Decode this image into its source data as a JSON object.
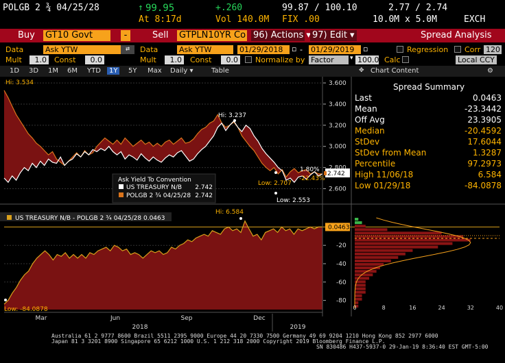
{
  "quote": {
    "ticker": "POLGB 2 ¾ 04/25/28",
    "arrow": "↑",
    "last": "99.95",
    "change": "+.260",
    "at_time": "At 8:17d",
    "volume": "Vol 140.0M",
    "bid_ask": "99.87 / 100.10",
    "yld": "2.77 / 2.74",
    "fix": "FIX .00",
    "size": "10.0M x 5.0M",
    "source": "EXCH"
  },
  "bar": {
    "buy": "Buy",
    "buy_security": "GT10 Govt",
    "dash": "-",
    "sell": "Sell",
    "sell_security": "GTPLN10YR Co",
    "actions": "96) Actions ▾",
    "edit": "97) Edit ▾",
    "title": "Spread Analysis"
  },
  "row3": {
    "data_label_1": "Data",
    "data_value_1": "Ask YTW",
    "data_label_2": "Data",
    "data_value_2": "Ask YTW",
    "date_from": "01/29/2018",
    "date_sep": "-",
    "date_to": "01/29/2019",
    "regression": "Regression",
    "corr": "Corr",
    "corr_value": "120"
  },
  "row4": {
    "mult_label_1": "Mult",
    "mult_value_1": "1.0",
    "const_label_1": "Const",
    "const_value_1": "0.0",
    "mult_label_2": "Mult",
    "mult_value_2": "1.0",
    "const_label_2": "Const",
    "const_value_2": "0.0",
    "normalize": "Normalize by",
    "normalize_value": "Factor",
    "factor_value": "100.0",
    "calc": "Calc",
    "currency": "Local CCY"
  },
  "toolbar": {
    "periods": [
      "1D",
      "3D",
      "1M",
      "6M",
      "YTD",
      "1Y",
      "5Y",
      "Max"
    ],
    "selected": "1Y",
    "frequency": "Daily ▾",
    "table": "Table",
    "chart_content": "Chart Content"
  },
  "summary": {
    "title": "Spread Summary",
    "rows": [
      {
        "k": "Last",
        "v": "0.0463",
        "c": "#ffffff"
      },
      {
        "k": "Mean",
        "v": "-23.3442",
        "c": "#ffffff"
      },
      {
        "k": "Off Avg",
        "v": "23.3905",
        "c": "#ffffff"
      },
      {
        "k": "Median",
        "v": "-20.4592",
        "c": "#ffb400"
      },
      {
        "k": "StDev",
        "v": "17.6044",
        "c": "#ffb400"
      },
      {
        "k": "StDev from Mean",
        "v": "1.3287",
        "c": "#ffb400"
      },
      {
        "k": "Percentile",
        "v": "97.2973",
        "c": "#ffb400"
      },
      {
        "k": "High 11/06/18",
        "v": "6.584",
        "c": "#ffb400"
      },
      {
        "k": "Low 01/29/18",
        "v": "-84.0878",
        "c": "#ffb400"
      }
    ]
  },
  "chart_data": [
    {
      "type": "area",
      "title": "",
      "yaxis_ticks": [
        "3.600",
        "3.400",
        "3.200",
        "3.000",
        "2.800",
        "2.600"
      ],
      "ylim": [
        2.48,
        3.62
      ],
      "legend_title": "Ask Yield To Convention",
      "series": [
        {
          "name": "US TREASURY N/B",
          "last": "2.742",
          "color": "#ffffff",
          "values": [
            2.7,
            2.66,
            2.72,
            2.68,
            2.75,
            2.8,
            2.77,
            2.84,
            2.8,
            2.86,
            2.82,
            2.88,
            2.85,
            2.84,
            2.9,
            2.82,
            2.86,
            2.88,
            2.93,
            2.9,
            2.95,
            2.92,
            2.97,
            2.95,
            2.98,
            2.96,
            3.0,
            2.95,
            2.92,
            2.95,
            2.88,
            2.92,
            2.9,
            2.87,
            2.93,
            2.89,
            2.86,
            2.9,
            2.87,
            2.85,
            2.89,
            2.92,
            2.9,
            2.94,
            2.96,
            2.91,
            2.86,
            2.88,
            2.93,
            2.97,
            3.0,
            3.05,
            3.1,
            3.18,
            3.22,
            3.15,
            3.2,
            3.24,
            3.18,
            3.14,
            3.2,
            3.17,
            3.1,
            3.05,
            2.98,
            2.93,
            2.89,
            2.85,
            2.8,
            2.77,
            2.68,
            2.7,
            2.66,
            2.71,
            2.72,
            2.69,
            2.73,
            2.76,
            2.72,
            2.74
          ]
        },
        {
          "name": "POLGB 2 ¾ 04/25/28",
          "last": "2.742",
          "color": "#d9731b",
          "values": [
            3.53,
            3.46,
            3.38,
            3.3,
            3.24,
            3.18,
            3.12,
            3.08,
            3.03,
            3.0,
            2.96,
            2.92,
            2.95,
            2.88,
            2.85,
            2.82,
            2.86,
            2.9,
            2.94,
            2.9,
            2.96,
            2.92,
            2.94,
            3.0,
            3.04,
            3.08,
            3.05,
            3.02,
            3.06,
            3.02,
            3.08,
            3.04,
            3.0,
            3.03,
            3.06,
            3.02,
            3.04,
            3.0,
            3.03,
            3.0,
            3.04,
            3.06,
            3.02,
            3.05,
            3.08,
            3.03,
            3.04,
            3.07,
            3.12,
            3.16,
            3.18,
            3.22,
            3.24,
            3.3,
            3.22,
            3.18,
            3.2,
            3.23,
            3.18,
            3.1,
            3.05,
            3.0,
            2.96,
            2.9,
            2.84,
            2.8,
            2.77,
            2.8,
            2.74,
            2.78,
            2.71,
            2.76,
            2.79,
            2.75,
            2.77,
            2.78,
            2.74,
            2.76,
            2.74,
            2.74
          ]
        }
      ],
      "annotations": [
        {
          "text": "Hi: 3.534",
          "color": "#ffb400"
        },
        {
          "text": "Hi: 3.237",
          "color": "#ffffff"
        },
        {
          "text": "Low: 2.707",
          "color": "#ffb400"
        },
        {
          "text": "Low: 2.553",
          "color": "#ffffff"
        }
      ],
      "labels_right": [
        {
          "text": "1.80%",
          "color": "#ffffff"
        },
        {
          "text": "-22.43%",
          "color": "#ffb400"
        },
        {
          "text": "2.742",
          "color": "#ffffff"
        }
      ]
    },
    {
      "type": "area",
      "title": "US TREASURY N/B - POLGB 2 ¾ 04/25/28 0.0463",
      "yaxis_ticks": [
        "-20",
        "-40",
        "-60",
        "-80"
      ],
      "ylim": [
        -90,
        10
      ],
      "last_value": "0.0463",
      "series": [
        {
          "name": "spread",
          "color": "#d9a01b",
          "values": [
            -84.09,
            -80,
            -72,
            -66,
            -58,
            -52,
            -48,
            -40,
            -34,
            -30,
            -26,
            -30,
            -36,
            -30,
            -32,
            -28,
            -34,
            -30,
            -34,
            -30,
            -34,
            -28,
            -30,
            -26,
            -24,
            -22,
            -26,
            -20,
            -22,
            -26,
            -24,
            -30,
            -28,
            -30,
            -34,
            -30,
            -26,
            -28,
            -26,
            -30,
            -28,
            -22,
            -24,
            -20,
            -18,
            -14,
            -16,
            -12,
            -10,
            -8,
            -10,
            -4,
            -6,
            -8,
            -2,
            0,
            -4,
            -2,
            -6,
            6.58,
            -2,
            -10,
            -8,
            -14,
            -6,
            -4,
            -2,
            -6,
            0,
            -4,
            -2,
            -8,
            -2,
            -4,
            -2,
            0,
            -2,
            0,
            0.0463
          ]
        }
      ],
      "annotations": [
        {
          "text": "Hi: 6.584",
          "color": "#ffb400"
        },
        {
          "text": "Low: -84.0878",
          "color": "#ffb400"
        }
      ]
    },
    {
      "type": "bar",
      "title": "",
      "orientation": "horizontal",
      "xaxis_ticks": [
        "0",
        "8",
        "16",
        "24",
        "32",
        "40"
      ],
      "xlim": [
        0,
        40
      ],
      "values": [
        1,
        2,
        3,
        9,
        24,
        30,
        32,
        27,
        23,
        16,
        14,
        12,
        10,
        8,
        7,
        6,
        5,
        4,
        3,
        3,
        3,
        3,
        2,
        2,
        1,
        1
      ]
    }
  ],
  "time_axis": {
    "months": [
      "Mar",
      "Jun",
      "Sep",
      "Dec"
    ],
    "years": [
      "2018",
      "2019"
    ]
  },
  "footer": {
    "line1": "Australia 61 2 9777 8600 Brazil 5511 2395 9000 Europe 44 20 7330 7500 Germany 49 69 9204 1210 Hong Kong 852 2977 6000",
    "line2": "Japan 81 3 3201 8900        Singapore 65 6212 1000       U.S. 1 212 318 2000        Copyright 2019 Bloomberg Finance L.P.",
    "line3": "SN 830486 H437-5937-0 29-Jan-19  8:36:40 EST  GMT-5:00"
  }
}
